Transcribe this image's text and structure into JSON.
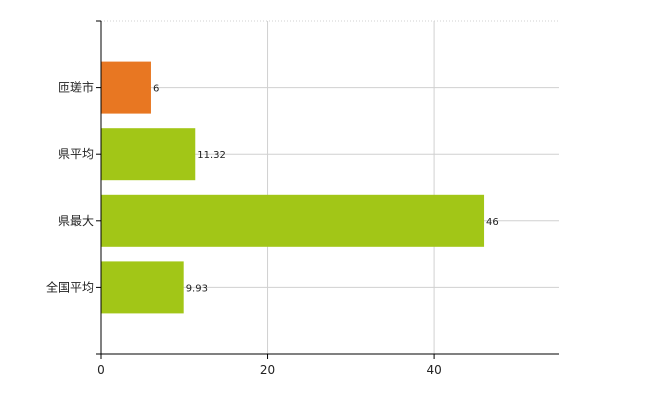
{
  "chart_data": {
    "type": "bar",
    "orientation": "horizontal",
    "title": "",
    "xlabel": "",
    "ylabel": "",
    "categories": [
      "匝瑳市",
      "県平均",
      "県最大",
      "全国平均"
    ],
    "values": [
      6,
      11.32,
      46,
      9.93
    ],
    "value_labels": [
      "6",
      "11.32",
      "46",
      "9.93"
    ],
    "bar_colors": [
      "#e87722",
      "#a2c617",
      "#a2c617",
      "#a2c617"
    ],
    "xlim": [
      0,
      55
    ],
    "xticks": [
      0,
      20,
      40
    ],
    "xtick_labels": [
      "0",
      "20",
      "40"
    ],
    "grid": true,
    "legend": "none"
  }
}
